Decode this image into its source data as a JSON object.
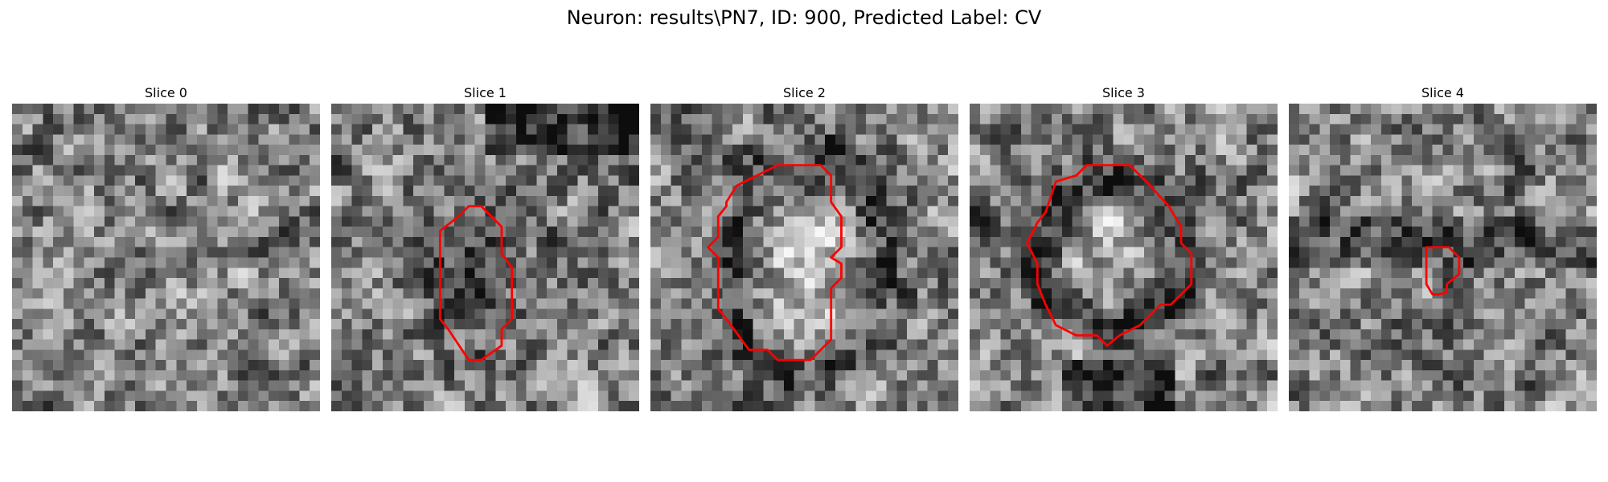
{
  "figure_title": "Neuron: results\\PN7, ID: 900, Predicted Label: CV",
  "contour_color": "#ff0000",
  "panels": [
    {
      "title": "Slice 0",
      "seed": 11,
      "pattern": "texture",
      "contour": []
    },
    {
      "title": "Slice 1",
      "seed": 23,
      "pattern": "dark-blob",
      "contour": [
        [
          12.4,
          11.0
        ],
        [
          13.4,
          10.0
        ],
        [
          14.6,
          10.0
        ],
        [
          16.6,
          12.0
        ],
        [
          16.6,
          14.6
        ],
        [
          17.6,
          16.0
        ],
        [
          17.6,
          21.0
        ],
        [
          16.6,
          22.0
        ],
        [
          16.6,
          23.6
        ],
        [
          14.6,
          25.0
        ],
        [
          13.4,
          25.0
        ],
        [
          11.4,
          22.0
        ],
        [
          10.6,
          21.0
        ],
        [
          10.6,
          12.4
        ]
      ]
    },
    {
      "title": "Slice 2",
      "seed": 37,
      "pattern": "ring-bright",
      "contour": [
        [
          12.4,
          6.0
        ],
        [
          16.6,
          6.0
        ],
        [
          17.6,
          7.0
        ],
        [
          17.6,
          9.6
        ],
        [
          18.6,
          11.0
        ],
        [
          18.6,
          14.0
        ],
        [
          17.6,
          15.0
        ],
        [
          18.6,
          15.6
        ],
        [
          18.6,
          17.0
        ],
        [
          17.6,
          18.0
        ],
        [
          17.6,
          23.0
        ],
        [
          15.6,
          25.0
        ],
        [
          12.4,
          25.0
        ],
        [
          11.4,
          24.0
        ],
        [
          9.6,
          24.0
        ],
        [
          7.4,
          21.0
        ],
        [
          6.6,
          20.0
        ],
        [
          6.6,
          15.0
        ],
        [
          5.6,
          14.0
        ],
        [
          6.6,
          13.0
        ],
        [
          6.6,
          11.0
        ],
        [
          7.4,
          10.0
        ],
        [
          7.4,
          9.6
        ],
        [
          8.4,
          8.0
        ],
        [
          10.4,
          7.0
        ]
      ]
    },
    {
      "title": "Slice 3",
      "seed": 51,
      "pattern": "ring-dark",
      "contour": [
        [
          12.4,
          6.0
        ],
        [
          15.6,
          6.0
        ],
        [
          16.6,
          7.0
        ],
        [
          17.6,
          8.0
        ],
        [
          19.4,
          10.0
        ],
        [
          20.6,
          12.0
        ],
        [
          20.6,
          13.6
        ],
        [
          21.6,
          14.6
        ],
        [
          21.6,
          17.6
        ],
        [
          20.6,
          18.6
        ],
        [
          19.6,
          19.6
        ],
        [
          18.6,
          19.6
        ],
        [
          16.6,
          21.6
        ],
        [
          14.6,
          22.6
        ],
        [
          13.4,
          23.6
        ],
        [
          12.4,
          22.6
        ],
        [
          10.4,
          22.6
        ],
        [
          8.4,
          21.6
        ],
        [
          7.4,
          19.6
        ],
        [
          6.6,
          17.6
        ],
        [
          6.6,
          15.6
        ],
        [
          5.6,
          13.6
        ],
        [
          6.6,
          11.6
        ],
        [
          7.4,
          10.6
        ],
        [
          8.4,
          7.6
        ],
        [
          10.4,
          7.0
        ],
        [
          11.4,
          6.0
        ]
      ]
    },
    {
      "title": "Slice 4",
      "seed": 73,
      "pattern": "noise-band",
      "contour": [
        [
          13.4,
          14.0
        ],
        [
          15.6,
          14.0
        ],
        [
          16.6,
          15.0
        ],
        [
          16.6,
          16.6
        ],
        [
          15.4,
          17.6
        ],
        [
          15.4,
          18.4
        ],
        [
          14.6,
          18.6
        ],
        [
          14.0,
          18.6
        ],
        [
          13.4,
          17.6
        ],
        [
          13.4,
          14.0
        ]
      ]
    }
  ]
}
